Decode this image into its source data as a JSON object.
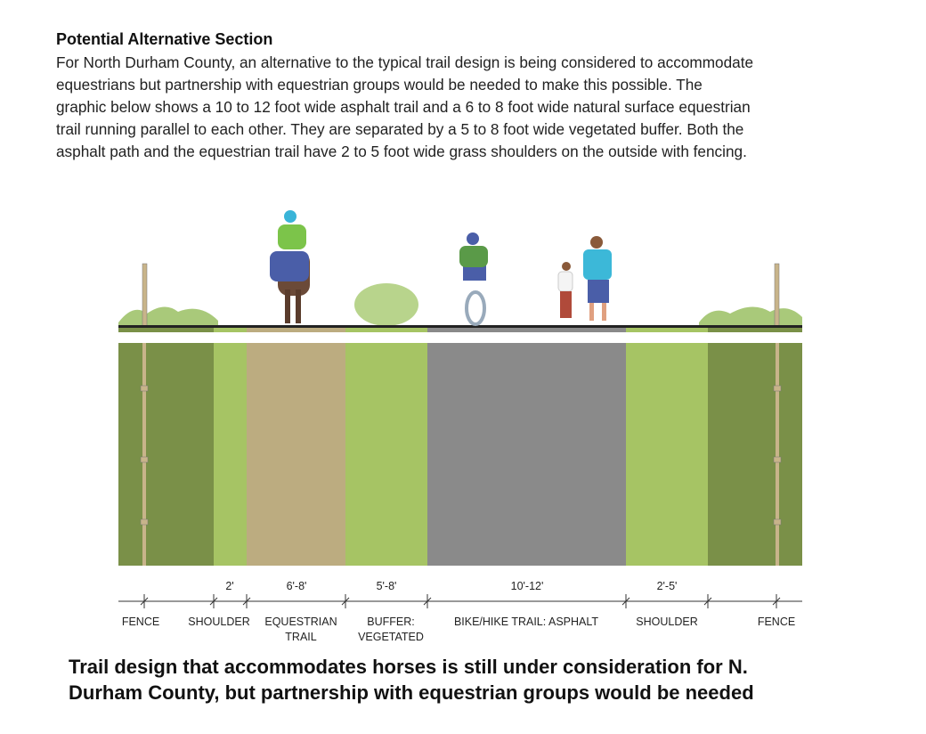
{
  "heading": "Potential Alternative Section",
  "body_lines": [
    "For North Durham County, an alternative to the typical trail design is being considered to accommodate",
    "equestrians but partnership with equestrian groups would be needed to make this possible. The",
    "graphic below shows a 10 to 12 foot wide asphalt trail and a 6 to 8 foot wide natural surface equestrian",
    "trail running parallel to each other. They are separated by a 5 to 8 foot wide vegetated buffer. Both the",
    "asphalt path and the equestrian trail have 2 to 5 foot wide grass shoulders on the outside with fencing."
  ],
  "diagram": {
    "dimensions": [
      "2'",
      "6'-8'",
      "5'-8'",
      "10'-12'",
      "2'-5'"
    ],
    "zones": [
      [
        "FENCE"
      ],
      [
        "SHOULDER"
      ],
      [
        "EQUESTRIAN",
        "TRAIL"
      ],
      [
        "BUFFER:",
        "VEGETATED"
      ],
      [
        "BIKE/HIKE TRAIL: ASPHALT"
      ],
      [
        "SHOULDER"
      ],
      [
        "FENCE"
      ]
    ]
  },
  "caption_lines": [
    "Trail design that accommodates horses is still under consideration for N.",
    "Durham County, but partnership with equestrian groups would be needed"
  ]
}
